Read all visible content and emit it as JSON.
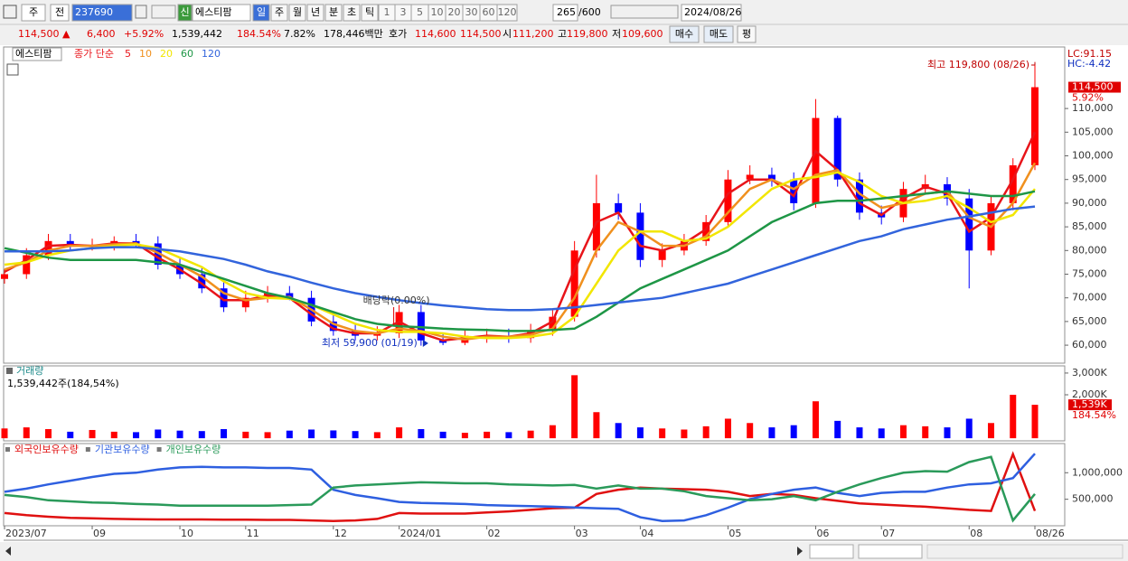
{
  "toolbar": {
    "market": "주",
    "scope": "전",
    "code": "237690",
    "badge": "신",
    "name": "에스티팜",
    "periods": [
      "일",
      "주",
      "월",
      "년",
      "분",
      "초",
      "틱"
    ],
    "intervals": [
      "1",
      "3",
      "5",
      "10",
      "20",
      "30",
      "60",
      "120"
    ],
    "count": "265",
    "max": "/600",
    "date": "2024/08/26"
  },
  "quote": {
    "price": "114,500 ▲",
    "change": "6,400",
    "rate": "+5.92%",
    "volume": "1,539,442",
    "volume_ratio": "184.54%",
    "turnover": "7.82%",
    "amount": "178,446백만",
    "ask_label": "호가",
    "ask": "114,600",
    "bid": "114,500",
    "open_label": "시",
    "open": "111,200",
    "high_label": "고",
    "high": "119,800",
    "low_label": "저",
    "low": "109,600",
    "buy": "매수",
    "sell": "매도",
    "avg": "평"
  },
  "chart_data": [
    {
      "type": "candlestick",
      "title": "에스티팜",
      "ma_label": "종가 단순",
      "up_color": "#ff0000",
      "down_color": "#0000ff",
      "open": [
        74000,
        75000,
        79000,
        82000,
        81000,
        81000,
        82000,
        81500,
        77000,
        75000,
        72000,
        68000,
        70000,
        71000,
        70000,
        65000,
        63000,
        62000,
        62500,
        67000,
        61000,
        60500,
        62000,
        62000,
        61500,
        63000,
        66000,
        80000,
        90000,
        88000,
        78000,
        80000,
        82000,
        86000,
        95000,
        96000,
        95000,
        90000,
        108000,
        95000,
        88000,
        87000,
        93000,
        94000,
        91000,
        80000,
        90000,
        98000
      ],
      "high": [
        76000,
        80500,
        83500,
        83500,
        82500,
        83000,
        83500,
        83000,
        78500,
        76500,
        73500,
        71500,
        72500,
        72500,
        71500,
        66500,
        64500,
        64000,
        68500,
        68500,
        62500,
        63500,
        63500,
        63500,
        64500,
        67500,
        82000,
        96000,
        92000,
        90000,
        81500,
        83500,
        87500,
        97000,
        98000,
        97500,
        96500,
        112000,
        108500,
        96500,
        89500,
        94500,
        96000,
        95500,
        93000,
        91500,
        99500,
        119800
      ],
      "low": [
        73000,
        74000,
        78000,
        80000,
        80000,
        80000,
        80500,
        76000,
        74000,
        71000,
        67000,
        67000,
        69000,
        69500,
        64000,
        62000,
        61000,
        61000,
        61500,
        59900,
        60000,
        60000,
        60500,
        60500,
        60500,
        62000,
        65000,
        78500,
        86500,
        76500,
        76500,
        79000,
        81000,
        85000,
        94000,
        93500,
        88500,
        89000,
        93500,
        86500,
        85500,
        86000,
        92000,
        89500,
        72000,
        79000,
        88500,
        97000
      ],
      "close": [
        75000,
        79000,
        82000,
        81000,
        81000,
        82000,
        81500,
        77000,
        75000,
        72000,
        68000,
        70000,
        71000,
        70000,
        65000,
        63000,
        62000,
        62500,
        67000,
        61000,
        60500,
        62000,
        62000,
        61500,
        63000,
        66000,
        80000,
        90000,
        88000,
        78000,
        80000,
        82000,
        86000,
        95000,
        96000,
        95000,
        90000,
        108000,
        95000,
        88000,
        87000,
        93000,
        94000,
        91000,
        80000,
        90000,
        98000,
        114500
      ],
      "series": [
        {
          "name": "5",
          "color": "#e8141a",
          "values": [
            75500,
            78000,
            81000,
            81200,
            81000,
            81500,
            81500,
            78500,
            76000,
            73000,
            69500,
            69500,
            70500,
            70000,
            66500,
            63500,
            62500,
            62500,
            65000,
            62500,
            61000,
            61500,
            62000,
            61800,
            62500,
            65000,
            76000,
            86000,
            88000,
            81000,
            80000,
            81500,
            84500,
            92000,
            95000,
            95000,
            91500,
            101000,
            97000,
            90000,
            87500,
            91000,
            93500,
            92000,
            84000,
            87000,
            95000,
            105000
          ]
        },
        {
          "name": "10",
          "color": "#f0901e",
          "values": [
            76000,
            77500,
            80000,
            81000,
            81000,
            81300,
            81500,
            79500,
            77000,
            74500,
            71000,
            69500,
            70000,
            70200,
            67500,
            64500,
            63000,
            62500,
            63500,
            63000,
            61800,
            61200,
            61800,
            61800,
            62200,
            63500,
            70000,
            80000,
            86000,
            84000,
            81000,
            81000,
            83000,
            88000,
            93000,
            95000,
            93000,
            96000,
            97000,
            92000,
            89000,
            90000,
            92000,
            92500,
            87000,
            85000,
            90000,
            98500
          ]
        },
        {
          "name": "20",
          "color": "#f2e600",
          "values": [
            77000,
            77500,
            79000,
            80000,
            80500,
            81000,
            81300,
            80500,
            78500,
            76500,
            73500,
            71000,
            70000,
            69800,
            68500,
            66500,
            64500,
            63200,
            62800,
            62800,
            62500,
            61800,
            61500,
            61500,
            61800,
            62500,
            66000,
            73000,
            80000,
            84000,
            84000,
            82000,
            82500,
            85000,
            89000,
            93000,
            95000,
            95500,
            96500,
            94500,
            91500,
            90000,
            90500,
            91500,
            89000,
            86000,
            87500,
            93000
          ]
        },
        {
          "name": "60",
          "color": "#1e9646",
          "values": [
            80500,
            79500,
            78500,
            78000,
            78000,
            78000,
            78000,
            77500,
            77000,
            75500,
            74000,
            72500,
            71000,
            70000,
            68500,
            67000,
            65500,
            64500,
            64000,
            63800,
            63500,
            63300,
            63200,
            63000,
            63000,
            63200,
            63500,
            66000,
            69000,
            72000,
            74000,
            76000,
            78000,
            80000,
            83000,
            86000,
            88000,
            90000,
            90500,
            90500,
            91000,
            91500,
            92000,
            92500,
            92000,
            91500,
            91500,
            92500
          ]
        },
        {
          "name": "120",
          "color": "#3264dc",
          "values": [
            79800,
            79800,
            79800,
            80000,
            80500,
            80700,
            80700,
            80300,
            79800,
            79000,
            78200,
            77000,
            75600,
            74500,
            73200,
            72000,
            71000,
            70200,
            69500,
            68900,
            68400,
            68000,
            67600,
            67400,
            67400,
            67600,
            68000,
            68500,
            69000,
            69500,
            70000,
            71000,
            72000,
            73000,
            74500,
            76000,
            77500,
            79000,
            80500,
            82000,
            83000,
            84500,
            85500,
            86500,
            87200,
            88000,
            88800,
            89300
          ]
        }
      ],
      "ylim": [
        56200,
        123000
      ],
      "yticks": [
        {
          "value": 60000,
          "label": "60,000"
        },
        {
          "value": 65000,
          "label": "65,000"
        },
        {
          "value": 70000,
          "label": "70,000"
        },
        {
          "value": 75000,
          "label": "75,000"
        },
        {
          "value": 80000,
          "label": "80,000"
        },
        {
          "value": 85000,
          "label": "85,000"
        },
        {
          "value": 90000,
          "label": "90,000"
        },
        {
          "value": 95000,
          "label": "95,000"
        },
        {
          "value": 100000,
          "label": "100,000"
        },
        {
          "value": 105000,
          "label": "105,000"
        },
        {
          "value": 110000,
          "label": "110,000"
        }
      ],
      "high_note": "최고 119,800 (08/26)",
      "low_note": "최저 59,900 (01/19)",
      "dividend_note": "배당락(0.00%)",
      "last": {
        "value": 114500,
        "label": "114,500",
        "change": "5.92%"
      },
      "lc": "LC:91.15",
      "hc": "HC:-4.42"
    },
    {
      "type": "bar",
      "title": "거래량",
      "subtitle": "1,539,442주(184,54%)",
      "values": [
        450,
        500,
        420,
        300,
        380,
        300,
        280,
        400,
        350,
        330,
        420,
        300,
        280,
        350,
        400,
        360,
        330,
        280,
        500,
        420,
        300,
        250,
        300,
        280,
        350,
        600,
        2900,
        1200,
        700,
        500,
        450,
        400,
        550,
        900,
        700,
        500,
        600,
        1700,
        800,
        500,
        450,
        600,
        550,
        500,
        900,
        700,
        2000,
        1539
      ],
      "ylim": [
        -120,
        3330
      ],
      "yticks": [
        {
          "value": 2000,
          "label": "2,000K"
        },
        {
          "value": 3000,
          "label": "3,000K"
        }
      ],
      "last": {
        "value": 1539,
        "label": "1,539K",
        "change": "184.54%"
      }
    },
    {
      "type": "line",
      "categories": [
        "2023/07",
        null,
        null,
        null,
        "09",
        null,
        null,
        null,
        "10",
        null,
        null,
        "11",
        null,
        null,
        null,
        "12",
        null,
        null,
        "2024/01",
        null,
        null,
        null,
        "02",
        null,
        null,
        null,
        "03",
        null,
        null,
        "04",
        null,
        null,
        null,
        "05",
        null,
        null,
        null,
        "06",
        null,
        null,
        "07",
        null,
        null,
        null,
        "08",
        null,
        null,
        "08/26"
      ],
      "series": [
        {
          "name": "외국인보유수량",
          "color": "#e01010",
          "values": [
            240000,
            200000,
            170000,
            150000,
            140000,
            130000,
            125000,
            120000,
            120000,
            120000,
            115000,
            115000,
            110000,
            110000,
            100000,
            90000,
            100000,
            130000,
            240000,
            230000,
            230000,
            230000,
            250000,
            270000,
            300000,
            330000,
            340000,
            600000,
            680000,
            720000,
            700000,
            690000,
            680000,
            640000,
            560000,
            600000,
            580000,
            520000,
            470000,
            420000,
            400000,
            380000,
            360000,
            330000,
            300000,
            280000,
            1350000,
            280000
          ]
        },
        {
          "name": "기관보유수량",
          "color": "#2e5fe0",
          "values": [
            640000,
            700000,
            780000,
            850000,
            920000,
            980000,
            1000000,
            1060000,
            1100000,
            1110000,
            1100000,
            1100000,
            1090000,
            1090000,
            1060000,
            680000,
            580000,
            520000,
            450000,
            430000,
            420000,
            410000,
            390000,
            380000,
            370000,
            360000,
            345000,
            330000,
            320000,
            160000,
            90000,
            100000,
            200000,
            340000,
            500000,
            600000,
            680000,
            720000,
            620000,
            560000,
            620000,
            640000,
            640000,
            720000,
            780000,
            800000,
            900000,
            1360000
          ]
        },
        {
          "name": "개인보유수량",
          "color": "#2a9a5a",
          "values": [
            580000,
            540000,
            480000,
            460000,
            440000,
            430000,
            410000,
            400000,
            380000,
            380000,
            380000,
            380000,
            380000,
            390000,
            400000,
            720000,
            760000,
            780000,
            800000,
            820000,
            810000,
            800000,
            800000,
            780000,
            770000,
            760000,
            770000,
            700000,
            760000,
            700000,
            700000,
            650000,
            560000,
            520000,
            480000,
            500000,
            560000,
            480000,
            640000,
            780000,
            900000,
            1000000,
            1030000,
            1020000,
            1200000,
            1300000,
            100000,
            600000
          ]
        }
      ],
      "ylim": [
        0,
        1550000
      ],
      "yticks": [
        {
          "value": 500000,
          "label": "500,000"
        },
        {
          "value": 1000000,
          "label": "1,000,000"
        }
      ]
    }
  ]
}
